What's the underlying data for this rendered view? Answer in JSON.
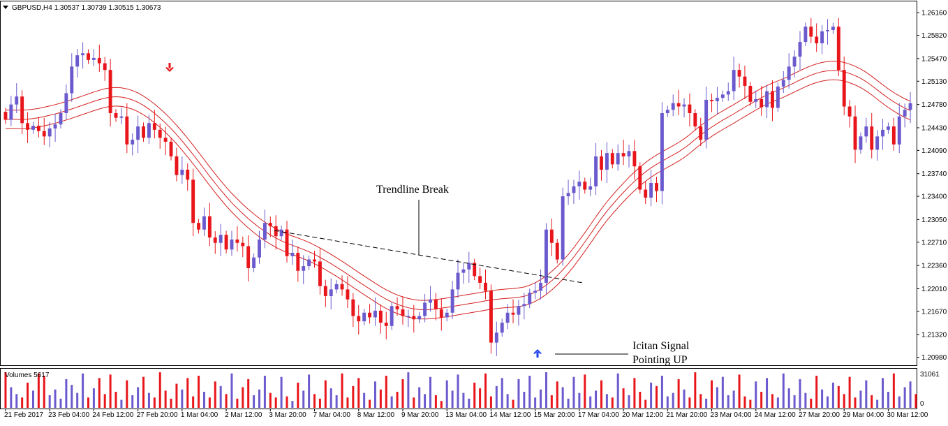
{
  "window": {
    "symbol_line": "GBPUSD,H4  1.30537 1.30739 1.30515 1.30673"
  },
  "colors": {
    "bull": "#6a5acd",
    "bear": "#e8161b",
    "band": "#d42020",
    "trendline": "#000000",
    "arrow_down": "#e8161b",
    "arrow_up": "#1c3ff0",
    "grid_axis": "#000000",
    "background": "#ffffff"
  },
  "icons": {
    "sell_arrow": "arrow-down-icon",
    "buy_arrow": "arrow-up-icon",
    "menu_triangle": "triangle-down-icon"
  },
  "annotations": {
    "trendline_label": "Trendline Break",
    "signal_label_line1": "Icitan Signal",
    "signal_label_line2": "Pointing UP"
  },
  "volume_panel": {
    "label": "Volumes 5617",
    "max_label": "31061",
    "min_label": "0"
  },
  "chart_data": {
    "type": "candlestick",
    "symbol": "GBPUSD",
    "timeframe": "H4",
    "y_ticks": [
      "1.26160",
      "1.25820",
      "1.25470",
      "1.25130",
      "1.24780",
      "1.24430",
      "1.24090",
      "1.23740",
      "1.23400",
      "1.23050",
      "1.22710",
      "1.22360",
      "1.22010",
      "1.21670",
      "1.21320",
      "1.20980"
    ],
    "y_range": [
      1.2086,
      1.2633
    ],
    "x_labels": [
      "21 Feb 2017",
      "23 Feb 04:00",
      "24 Feb 12:00",
      "27 Feb 20:00",
      "1 Mar 04:00",
      "2 Mar 12:00",
      "3 Mar 20:00",
      "7 Mar 04:00",
      "8 Mar 12:00",
      "9 Mar 20:00",
      "13 Mar 04:00",
      "14 Mar 12:00",
      "15 Mar 20:00",
      "17 Mar 04:00",
      "20 Mar 12:00",
      "21 Mar 20:00",
      "23 Mar 04:00",
      "24 Mar 12:00",
      "27 Mar 20:00",
      "29 Mar 04:00",
      "30 Mar 12:00"
    ],
    "x_label_bar_index": [
      0,
      8,
      16,
      24,
      32,
      40,
      48,
      56,
      64,
      72,
      80,
      88,
      96,
      104,
      112,
      120,
      128,
      136,
      144,
      152,
      160
    ],
    "closes": [
      1.2455,
      1.2478,
      1.249,
      1.245,
      1.244,
      1.2446,
      1.2438,
      1.243,
      1.2442,
      1.2448,
      1.2465,
      1.2495,
      1.2535,
      1.2552,
      1.2555,
      1.2545,
      1.2548,
      1.254,
      1.253,
      1.2465,
      1.2458,
      1.246,
      1.2418,
      1.2425,
      1.2445,
      1.2428,
      1.245,
      1.244,
      1.2428,
      1.2422,
      1.24,
      1.2372,
      1.238,
      1.2365,
      1.23,
      1.229,
      1.231,
      1.2278,
      1.227,
      1.2282,
      1.226,
      1.2275,
      1.227,
      1.2265,
      1.2232,
      1.2248,
      1.2275,
      1.23,
      1.2295,
      1.228,
      1.229,
      1.225,
      1.2255,
      1.2228,
      1.2235,
      1.2245,
      1.2242,
      1.2205,
      1.219,
      1.22,
      1.2208,
      1.22,
      1.2185,
      1.216,
      1.2152,
      1.2165,
      1.2158,
      1.2168,
      1.215,
      1.2145,
      1.2175,
      1.217,
      1.216,
      1.216,
      1.2155,
      1.216,
      1.218,
      1.2185,
      1.217,
      1.2158,
      1.2165,
      1.22,
      1.2225,
      1.223,
      1.224,
      1.222,
      1.221,
      1.2198,
      1.212,
      1.2135,
      1.215,
      1.2165,
      1.2162,
      1.2175,
      1.2178,
      1.2195,
      1.2198,
      1.221,
      1.229,
      1.227,
      1.2245,
      1.234,
      1.2345,
      1.2355,
      1.2362,
      1.235,
      1.2355,
      1.24,
      1.238,
      1.2405,
      1.2388,
      1.2405,
      1.24,
      1.2408,
      1.2385,
      1.235,
      1.2338,
      1.236,
      1.2348,
      1.2465,
      1.247,
      1.248,
      1.2475,
      1.2478,
      1.2465,
      1.2445,
      1.2425,
      1.2485,
      1.2483,
      1.2488,
      1.2493,
      1.2498,
      1.253,
      1.252,
      1.2506,
      1.2482,
      1.2486,
      1.2474,
      1.2498,
      1.2473,
      1.2505,
      1.2515,
      1.2535,
      1.255,
      1.2572,
      1.2595,
      1.258,
      1.257,
      1.2588,
      1.259,
      1.2595,
      1.253,
      1.2475,
      1.246,
      1.241,
      1.243,
      1.2445,
      1.241,
      1.243,
      1.244,
      1.2445,
      1.2418,
      1.246,
      1.247,
      1.248
    ],
    "volumes": [
      31061,
      18000,
      12000,
      9000,
      22000,
      15000,
      30000,
      28000,
      11000,
      16000,
      8000,
      25000,
      20000,
      13000,
      30000,
      9000,
      17000,
      26000,
      12000,
      29000,
      14000,
      7000,
      24000,
      11000,
      18000,
      27000,
      13000,
      9000,
      31000,
      15000,
      8000,
      21000,
      16000,
      26000,
      10000,
      28000,
      14000,
      9000,
      23000,
      19000,
      12000,
      30000,
      8000,
      18000,
      25000,
      11000,
      16000,
      28000,
      13000,
      9000,
      27000,
      10000,
      6000,
      22000,
      15000,
      29000,
      12000,
      8000,
      24000,
      17000,
      11000,
      30000,
      9000,
      19000,
      26000,
      13000,
      7000,
      23000,
      16000,
      28000,
      10000,
      14000,
      25000,
      31000,
      9000,
      18000,
      12000,
      27000,
      11000,
      6000,
      24000,
      15000,
      29000,
      13000,
      8000,
      22000,
      17000,
      30000,
      10000,
      19000,
      26000,
      12000,
      7000,
      25000,
      14000,
      28000,
      9000,
      16000,
      31061,
      11000,
      23000,
      18000,
      8000,
      27000,
      13000,
      29000,
      10000,
      15000,
      24000,
      12000,
      9000,
      30000,
      17000,
      11000,
      26000,
      14000,
      7000,
      22000,
      19000,
      28000,
      10000,
      13000,
      25000,
      16000,
      9000,
      31000,
      12000,
      8000,
      24000,
      18000,
      27000,
      11000,
      15000,
      29000,
      10000,
      7000,
      23000,
      14000,
      26000,
      12000,
      9000,
      30000,
      17000,
      11000,
      25000,
      13000,
      8000,
      28000,
      16000,
      10000,
      22000,
      19000,
      12000,
      27000,
      9000,
      15000,
      24000,
      11000,
      7000,
      26000,
      14000,
      30000,
      10000,
      18000,
      23000,
      12000
    ]
  }
}
